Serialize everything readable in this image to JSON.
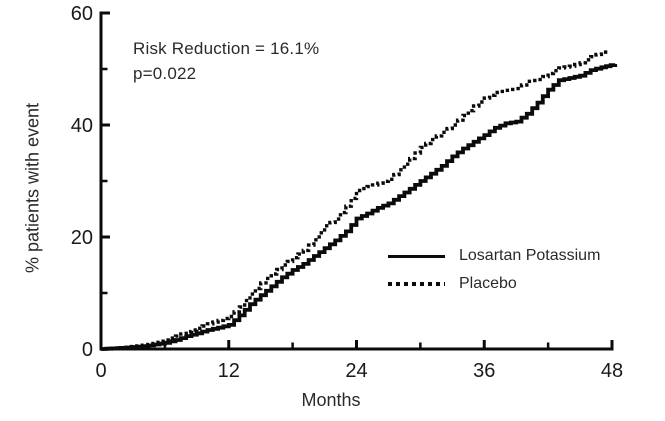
{
  "chart_data": {
    "type": "line",
    "subtype": "kaplan-meier-step",
    "title": "",
    "xlabel": "Months",
    "ylabel": "% patients with event",
    "xlim": [
      0,
      48
    ],
    "ylim": [
      0,
      60
    ],
    "grid": false,
    "legend_position": "inside-lower-right",
    "x_ticks_major": [
      0,
      12,
      24,
      36,
      48
    ],
    "x_ticks_minor": [
      6,
      18,
      30,
      42
    ],
    "y_ticks_major": [
      0,
      20,
      40,
      60
    ],
    "y_ticks_minor": [
      10,
      30,
      50
    ],
    "annotation": {
      "line1": "Risk Reduction = 16.1%",
      "line2": "p=0.022"
    },
    "legend": [
      {
        "name": "Losartan Potassium",
        "style": "solid"
      },
      {
        "name": "Placebo",
        "style": "dotted"
      }
    ],
    "series": [
      {
        "name": "Losartan Potassium",
        "style": "solid",
        "points": [
          [
            0,
            0
          ],
          [
            2,
            0.2
          ],
          [
            4,
            0.5
          ],
          [
            6,
            1.1
          ],
          [
            7,
            1.6
          ],
          [
            8,
            2.3
          ],
          [
            9,
            2.8
          ],
          [
            10,
            3.4
          ],
          [
            11,
            3.8
          ],
          [
            12,
            4.3
          ],
          [
            13,
            6
          ],
          [
            14,
            8
          ],
          [
            15,
            9.6
          ],
          [
            16,
            11.2
          ],
          [
            17,
            12.8
          ],
          [
            18,
            14.1
          ],
          [
            19,
            15.2
          ],
          [
            20,
            16.6
          ],
          [
            21,
            18
          ],
          [
            22,
            19.4
          ],
          [
            23,
            21
          ],
          [
            24,
            23.3
          ],
          [
            25,
            24.2
          ],
          [
            26,
            25.2
          ],
          [
            27,
            26
          ],
          [
            28,
            27.3
          ],
          [
            29,
            28.6
          ],
          [
            30,
            30
          ],
          [
            31,
            31.3
          ],
          [
            32,
            32.7
          ],
          [
            33,
            34.4
          ],
          [
            34,
            35.8
          ],
          [
            35,
            37
          ],
          [
            36,
            38.2
          ],
          [
            37,
            39.5
          ],
          [
            38,
            40.3
          ],
          [
            39,
            40.6
          ],
          [
            40,
            42
          ],
          [
            41,
            44
          ],
          [
            42,
            46.3
          ],
          [
            43,
            48
          ],
          [
            44,
            48.4
          ],
          [
            45,
            48.8
          ],
          [
            46,
            49.8
          ],
          [
            47,
            50.3
          ],
          [
            48.3,
            50.9
          ]
        ]
      },
      {
        "name": "Placebo",
        "style": "dotted",
        "points": [
          [
            0,
            0
          ],
          [
            2,
            0.3
          ],
          [
            4,
            0.8
          ],
          [
            6,
            1.6
          ],
          [
            7,
            2.3
          ],
          [
            8,
            3.1
          ],
          [
            9,
            3.7
          ],
          [
            10,
            4.5
          ],
          [
            11,
            5.1
          ],
          [
            12,
            5.8
          ],
          [
            13,
            7.5
          ],
          [
            14,
            9.8
          ],
          [
            15,
            11.8
          ],
          [
            16,
            13.4
          ],
          [
            17,
            15
          ],
          [
            18,
            16.3
          ],
          [
            19,
            17.6
          ],
          [
            20,
            19.5
          ],
          [
            21,
            22
          ],
          [
            22,
            23.2
          ],
          [
            23,
            25.5
          ],
          [
            24,
            28.3
          ],
          [
            25,
            29
          ],
          [
            26,
            29.6
          ],
          [
            27,
            30.3
          ],
          [
            28,
            32
          ],
          [
            29,
            34
          ],
          [
            30,
            36
          ],
          [
            31,
            37.4
          ],
          [
            32,
            38.7
          ],
          [
            33,
            40
          ],
          [
            34,
            41.7
          ],
          [
            35,
            43.4
          ],
          [
            36,
            44.8
          ],
          [
            37,
            45.8
          ],
          [
            38,
            46.2
          ],
          [
            39,
            46.5
          ],
          [
            40,
            47.8
          ],
          [
            41,
            48.1
          ],
          [
            42,
            49.2
          ],
          [
            43,
            50.2
          ],
          [
            44,
            50.5
          ],
          [
            45,
            51.1
          ],
          [
            46,
            52.2
          ],
          [
            47,
            53
          ],
          [
            47.4,
            53.4
          ]
        ]
      }
    ],
    "colors": {
      "ink": "#0b0b0b",
      "text": "#2a2a2a",
      "background": "#ffffff"
    }
  }
}
